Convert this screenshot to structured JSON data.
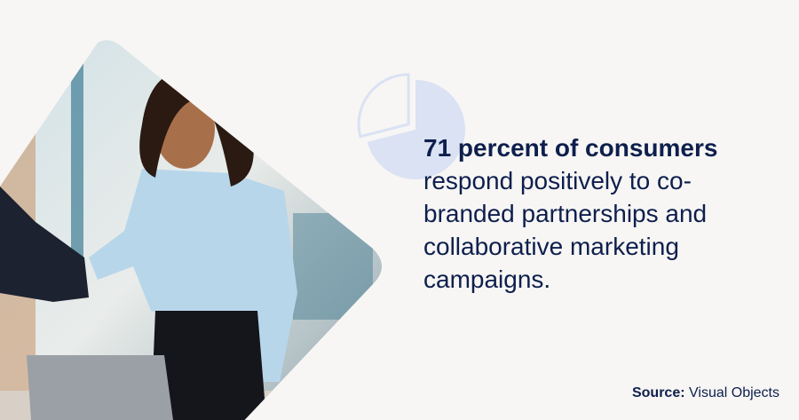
{
  "stat": {
    "highlight": "71 percent of consumers",
    "text": "respond positively to co-branded partnerships and collaborative marketing campaigns.",
    "percent": 71
  },
  "source": {
    "label": "Source:",
    "value": "Visual Objects"
  },
  "colors": {
    "navy": "#0e1f4d",
    "pie_fill": "#dae2f4",
    "background": "#f7f6f4"
  },
  "image": {
    "description_icon": "handshake-photo"
  }
}
